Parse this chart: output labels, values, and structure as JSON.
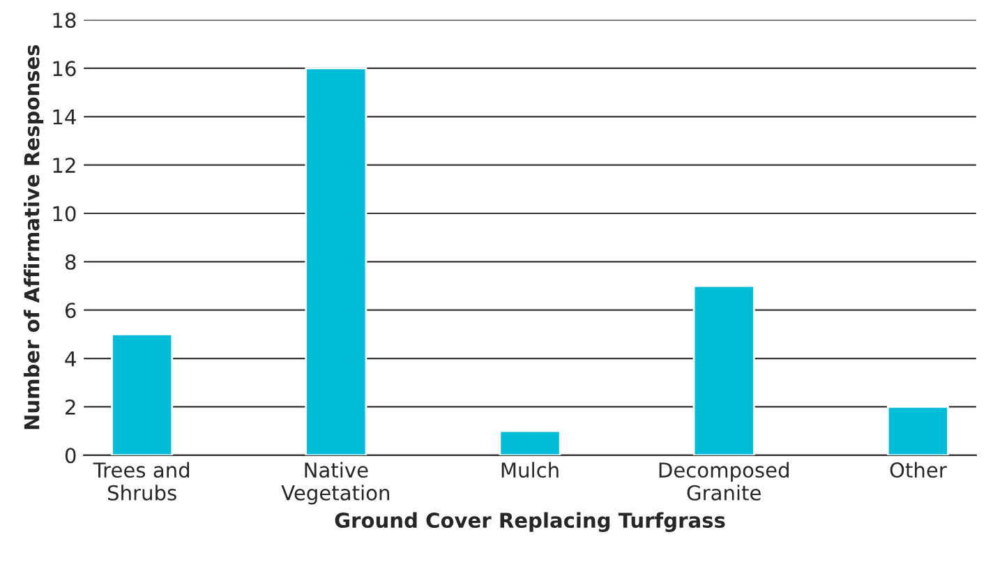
{
  "chart_data": {
    "type": "bar",
    "xlabel": "Ground Cover Replacing Turfgrass",
    "ylabel": "Number of Affirmative Responses",
    "categories": [
      "Trees and\nShrubs",
      "Native\nVegetation",
      "Mulch",
      "Decomposed\nGranite",
      "Other"
    ],
    "values": [
      5,
      16,
      1,
      7,
      2
    ],
    "color": "#00bcd6",
    "ylim": [
      0,
      18
    ],
    "yticks": [
      0,
      2,
      4,
      6,
      8,
      10,
      12,
      14,
      16,
      18
    ],
    "grid": "y"
  }
}
